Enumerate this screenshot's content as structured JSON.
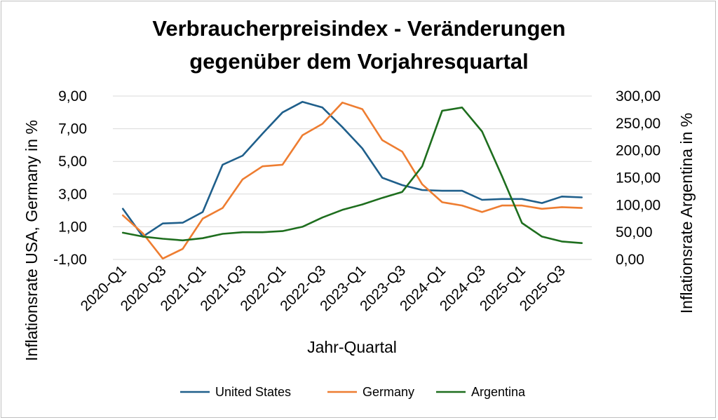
{
  "chart_data": {
    "type": "line",
    "title_lines": [
      "Verbraucherpreisindex - Veränderungen",
      "gegenüber dem Vorjahresquartal"
    ],
    "xlabel": "Jahr-Quartal",
    "ylabel": "Inflationsrate USA, Germany in %",
    "y2label": "Inflationsrate Argentina in %",
    "ylim": [
      -1,
      9
    ],
    "y2lim": [
      0,
      300
    ],
    "yticks": [
      "-1,00",
      "1,00",
      "3,00",
      "5,00",
      "7,00",
      "9,00"
    ],
    "y2ticks": [
      "0,00",
      "50,00",
      "100,00",
      "150,00",
      "200,00",
      "250,00",
      "300,00"
    ],
    "grid": true,
    "legend_position": "bottom",
    "categories": [
      "2020-Q1",
      "2020-Q2",
      "2020-Q3",
      "2020-Q4",
      "2021-Q1",
      "2021-Q2",
      "2021-Q3",
      "2021-Q4",
      "2022-Q1",
      "2022-Q2",
      "2022-Q3",
      "2022-Q4",
      "2023-Q1",
      "2023-Q2",
      "2023-Q3",
      "2023-Q4",
      "2024-Q1",
      "2024-Q2",
      "2024-Q3",
      "2024-Q4",
      "2025-Q1",
      "2025-Q2",
      "2025-Q3",
      "2025-Q4"
    ],
    "x_tick_labels": [
      "2020-Q1",
      "2020-Q3",
      "2021-Q1",
      "2021-Q3",
      "2022-Q1",
      "2022-Q3",
      "2023-Q1",
      "2023-Q3",
      "2024-Q1",
      "2024-Q3",
      "2025-Q1",
      "2025-Q3"
    ],
    "series": [
      {
        "name": "United States",
        "axis": "left",
        "color": "#1f5f8b",
        "values": [
          2.1,
          0.4,
          1.2,
          1.25,
          1.9,
          4.8,
          5.35,
          6.7,
          8.0,
          8.65,
          8.3,
          7.1,
          5.8,
          4.0,
          3.55,
          3.25,
          3.2,
          3.2,
          2.65,
          2.7,
          2.7,
          2.45,
          2.85,
          2.8
        ]
      },
      {
        "name": "Germany",
        "axis": "left",
        "color": "#ee7d31",
        "values": [
          1.7,
          0.6,
          -0.95,
          -0.35,
          1.5,
          2.15,
          3.9,
          4.7,
          4.8,
          6.6,
          7.3,
          8.6,
          8.2,
          6.3,
          5.6,
          3.6,
          2.5,
          2.3,
          1.9,
          2.3,
          2.3,
          2.1,
          2.2,
          2.15
        ]
      },
      {
        "name": "Argentina",
        "axis": "right",
        "color": "#1e6e1e",
        "values": [
          49,
          42,
          38,
          35,
          39,
          47,
          50,
          50,
          52,
          60,
          77,
          91,
          101,
          113,
          124,
          171,
          273,
          279,
          235,
          153,
          67,
          42,
          33,
          30
        ]
      }
    ]
  }
}
